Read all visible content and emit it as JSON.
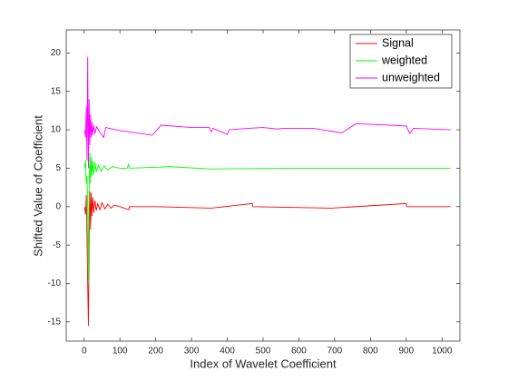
{
  "chart_data": {
    "type": "line",
    "xlabel": "Index of Wavelet Coefficient",
    "ylabel": "Shifted Value of Coefficient",
    "xlim": [
      -50,
      1050
    ],
    "ylim": [
      -17.5,
      23
    ],
    "xticks": [
      0,
      100,
      200,
      300,
      400,
      500,
      600,
      700,
      800,
      900,
      1000
    ],
    "yticks": [
      -15,
      -10,
      -5,
      0,
      5,
      10,
      15,
      20
    ],
    "legend": "upper right",
    "series": [
      {
        "name": "Signal",
        "color": "#ff0000",
        "x": [
          1,
          4,
          6,
          8,
          10,
          12,
          14,
          16,
          18,
          20,
          22,
          24,
          27,
          30,
          34,
          38,
          44,
          50,
          58,
          66,
          75,
          85,
          100,
          125,
          126,
          200,
          355,
          470,
          471,
          690,
          900,
          901,
          1024
        ],
        "values": [
          0,
          -1,
          1.5,
          -4,
          -10,
          -15.5,
          -5,
          2,
          -3,
          1.8,
          -1.2,
          1.2,
          -0.8,
          0.8,
          -0.5,
          0.4,
          -0.4,
          0.5,
          -0.3,
          0.3,
          -0.2,
          0.2,
          0,
          -0.4,
          0,
          0,
          -0.2,
          0.4,
          0,
          -0.2,
          0.4,
          0,
          0
        ]
      },
      {
        "name": "weighted",
        "color": "#00ff00",
        "x": [
          1,
          4,
          6,
          8,
          10,
          12,
          14,
          16,
          18,
          20,
          22,
          24,
          27,
          30,
          34,
          40,
          48,
          56,
          65,
          80,
          100,
          120,
          125,
          126,
          240,
          355,
          600,
          1024
        ],
        "values": [
          5,
          6,
          3,
          4,
          0,
          -10,
          2,
          7,
          3,
          6.5,
          4,
          6,
          4.2,
          5.8,
          4.5,
          5.4,
          4.6,
          5.3,
          4.8,
          5.2,
          5,
          5,
          5.6,
          5,
          5.2,
          4.9,
          5,
          5
        ]
      },
      {
        "name": "unweighted",
        "color": "#ff00ff",
        "x": [
          1,
          4,
          6,
          8,
          10,
          12,
          14,
          16,
          18,
          20,
          22,
          24,
          27,
          30,
          35,
          45,
          55,
          60,
          70,
          100,
          190,
          200,
          215,
          300,
          350,
          355,
          360,
          400,
          405,
          460,
          500,
          540,
          560,
          640,
          720,
          760,
          900,
          910,
          920,
          1024
        ],
        "values": [
          10,
          9,
          13,
          6,
          19.5,
          5,
          14,
          8,
          12,
          9,
          11,
          9.3,
          10.6,
          9.5,
          10.4,
          9.6,
          9,
          10.3,
          10.2,
          9.9,
          9.3,
          9.8,
          10.6,
          10.3,
          10.3,
          9.7,
          10.2,
          9.4,
          10,
          10.2,
          10.3,
          10.1,
          10.2,
          10.2,
          9.6,
          10.8,
          10.5,
          9.5,
          10.2,
          10
        ]
      }
    ]
  }
}
